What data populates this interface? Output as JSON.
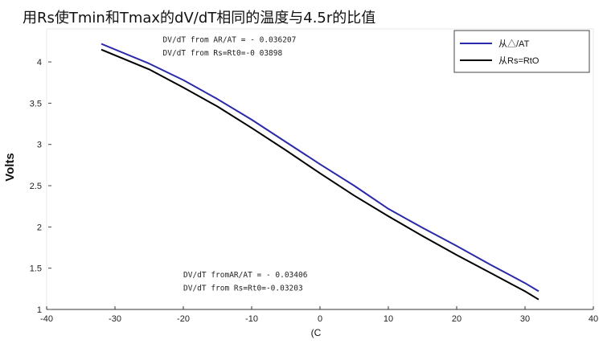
{
  "chart_data": {
    "type": "line",
    "title": "用Rs使Tmin和Tmax的dV/dT相同的温度与4.5r的比值",
    "xlabel": "(C",
    "ylabel": "Volts",
    "xlim": [
      -40,
      40
    ],
    "ylim": [
      1,
      4.4
    ],
    "x_ticks": [
      -40,
      -30,
      -20,
      -10,
      0,
      10,
      20,
      30,
      40
    ],
    "x_tick_labels": [
      "-40",
      "-30",
      "-20",
      "-10",
      "0",
      "10",
      "20",
      "30",
      "40"
    ],
    "y_ticks": [
      1,
      1.5,
      2,
      2.5,
      3,
      3.5,
      4
    ],
    "y_tick_labels": [
      "1",
      "1.5",
      "2",
      "2.5",
      "3",
      "3.5",
      "4"
    ],
    "grid": false,
    "legend_position": "top-right",
    "series": [
      {
        "name": "从△/AT",
        "color": "#2a2aa8",
        "x": [
          -32,
          -25,
          -20,
          -15,
          -10,
          -5,
          0,
          5,
          10,
          15,
          20,
          25,
          30,
          32
        ],
        "y": [
          4.22,
          3.98,
          3.78,
          3.55,
          3.3,
          3.03,
          2.76,
          2.5,
          2.22,
          1.99,
          1.77,
          1.54,
          1.32,
          1.22
        ]
      },
      {
        "name": "从Rs=RtO",
        "color": "#000000",
        "x": [
          -32,
          -25,
          -20,
          -15,
          -10,
          -5,
          0,
          5,
          10,
          15,
          20,
          25,
          30,
          32
        ],
        "y": [
          4.15,
          3.91,
          3.69,
          3.46,
          3.2,
          2.93,
          2.65,
          2.38,
          2.13,
          1.89,
          1.66,
          1.44,
          1.22,
          1.12
        ]
      }
    ],
    "annotations": [
      {
        "text": "DV/dT from AR/AT = - 0.036207",
        "x": -23,
        "y": 4.24
      },
      {
        "text": "DV/dT from Rs=Rt0=-0 03898",
        "x": -23,
        "y": 4.08
      },
      {
        "text": "DV/dT fromAR/AT = - 0.03406",
        "x": -20,
        "y": 1.39
      },
      {
        "text": "DV/dT from Rs=Rt0=-0.03203",
        "x": -20,
        "y": 1.23
      }
    ]
  }
}
